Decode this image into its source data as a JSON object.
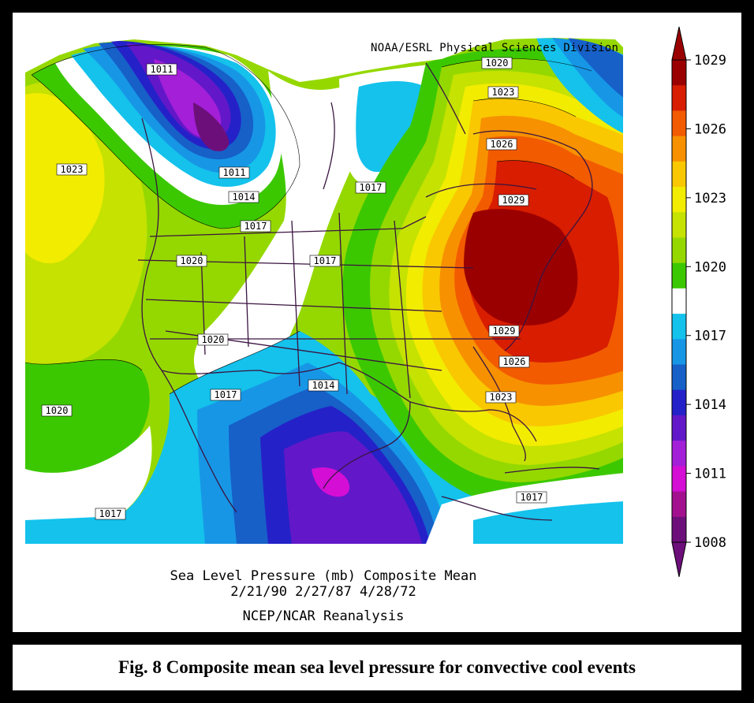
{
  "credit": "NOAA/ESRL Physical Sciences Division",
  "map": {
    "title": "Sea Level Pressure (mb) Composite Mean",
    "dates": "2/21/90 2/27/87 4/28/72",
    "source": "NCEP/NCAR Reanalysis",
    "variable": "Sea Level Pressure",
    "units": "mb",
    "high_center_label": "1029",
    "low_center_labels": [
      "1011"
    ],
    "contour_labels": [
      "1011",
      "1011",
      "1014",
      "1017",
      "1017",
      "1017",
      "1020",
      "1020",
      "1020",
      "1023",
      "1023",
      "1026",
      "1029",
      "1029",
      "1026",
      "1023",
      "1017",
      "1014",
      "1017",
      "1017",
      "1020"
    ]
  },
  "colorbar": {
    "tick_labels": [
      "1029",
      "1026",
      "1023",
      "1020",
      "1017",
      "1014",
      "1011",
      "1008"
    ],
    "colors": [
      "#9b0000",
      "#d81d00",
      "#f25b00",
      "#f79100",
      "#f9c800",
      "#f2ec00",
      "#c5e200",
      "#95d800",
      "#3cc800",
      "#ffffff",
      "#14c2ec",
      "#1796e6",
      "#1660c8",
      "#2521c8",
      "#6218c8",
      "#a31fd8",
      "#d40ed4",
      "#a3108f",
      "#6d0f7a"
    ]
  },
  "caption": "Fig. 8 Composite mean sea level pressure for convective cool events"
}
